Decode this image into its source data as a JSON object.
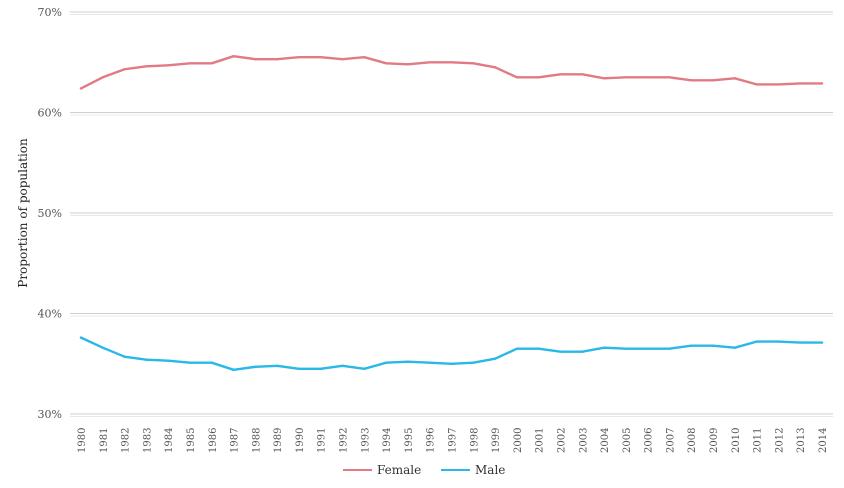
{
  "chart_data": {
    "type": "line",
    "title": "",
    "xlabel": "",
    "ylabel": "Proportion of population",
    "x": [
      "1980",
      "1981",
      "1982",
      "1983",
      "1984",
      "1985",
      "1986",
      "1987",
      "1988",
      "1989",
      "1990",
      "1991",
      "1992",
      "1993",
      "1994",
      "1995",
      "1996",
      "1997",
      "1998",
      "1999",
      "2000",
      "2001",
      "2002",
      "2003",
      "2004",
      "2005",
      "2006",
      "2007",
      "2008",
      "2009",
      "2010",
      "2011",
      "2012",
      "2013",
      "2014"
    ],
    "ylim": [
      30,
      70
    ],
    "yticks": [
      30,
      40,
      50,
      60,
      70
    ],
    "ytick_labels": [
      "30%",
      "40%",
      "50%",
      "60%",
      "70%"
    ],
    "grid": true,
    "legend_position": "bottom",
    "series": [
      {
        "name": "Female",
        "color": "#e27a84",
        "values": [
          62.4,
          63.5,
          64.3,
          64.6,
          64.7,
          64.9,
          64.9,
          65.6,
          65.3,
          65.3,
          65.5,
          65.5,
          65.3,
          65.5,
          64.9,
          64.8,
          65.0,
          65.0,
          64.9,
          64.5,
          63.5,
          63.5,
          63.8,
          63.8,
          63.4,
          63.5,
          63.5,
          63.5,
          63.2,
          63.2,
          63.4,
          62.8,
          62.8,
          62.9,
          62.9
        ]
      },
      {
        "name": "Male",
        "color": "#29b8e8",
        "values": [
          37.6,
          36.6,
          35.7,
          35.4,
          35.3,
          35.1,
          35.1,
          34.4,
          34.7,
          34.8,
          34.5,
          34.5,
          34.8,
          34.5,
          35.1,
          35.2,
          35.1,
          35.0,
          35.1,
          35.5,
          36.5,
          36.5,
          36.2,
          36.2,
          36.6,
          36.5,
          36.5,
          36.5,
          36.8,
          36.8,
          36.6,
          37.2,
          37.2,
          37.1,
          37.1
        ]
      }
    ]
  }
}
